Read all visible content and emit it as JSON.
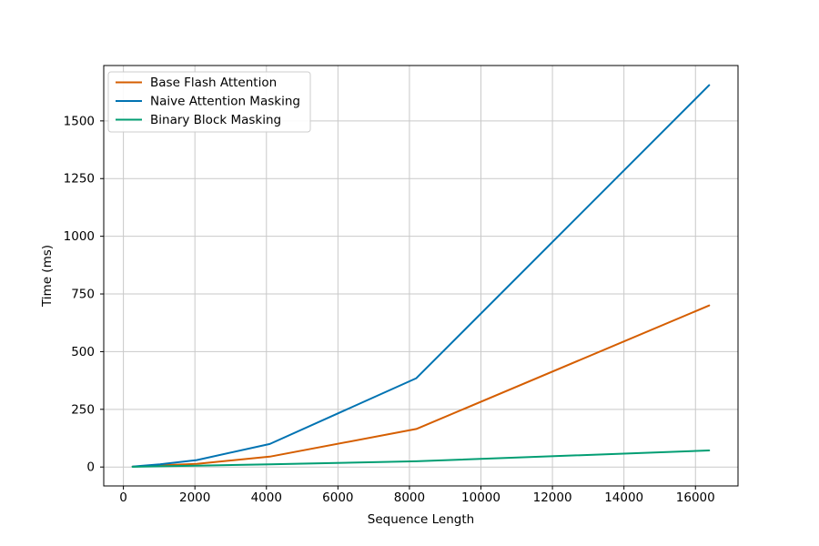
{
  "chart_data": {
    "type": "line",
    "title": "",
    "xlabel": "Sequence Length",
    "ylabel": "Time (ms)",
    "grid": true,
    "legend_position": "upper left",
    "xlim": [
      -550,
      17190
    ],
    "ylim": [
      -82,
      1740
    ],
    "xticks": [
      0,
      2000,
      4000,
      6000,
      8000,
      10000,
      12000,
      14000,
      16000
    ],
    "yticks": [
      0,
      250,
      500,
      750,
      1000,
      1250,
      1500
    ],
    "x": [
      256,
      512,
      1024,
      2048,
      4096,
      8192,
      16384
    ],
    "series": [
      {
        "name": "Base Flash Attention",
        "color": "#d55e00",
        "values": [
          2,
          3,
          7,
          14,
          45,
          165,
          700
        ]
      },
      {
        "name": "Naive Attention Masking",
        "color": "#0173b2",
        "values": [
          2,
          5,
          12,
          30,
          100,
          385,
          1655
        ]
      },
      {
        "name": "Binary Block Masking",
        "color": "#029e73",
        "values": [
          1,
          2,
          3,
          6,
          12,
          25,
          72
        ]
      }
    ],
    "colors": {
      "spine": "#000000",
      "grid": "#c9c9c9",
      "legend_border": "#cccccc",
      "background": "#ffffff"
    }
  }
}
